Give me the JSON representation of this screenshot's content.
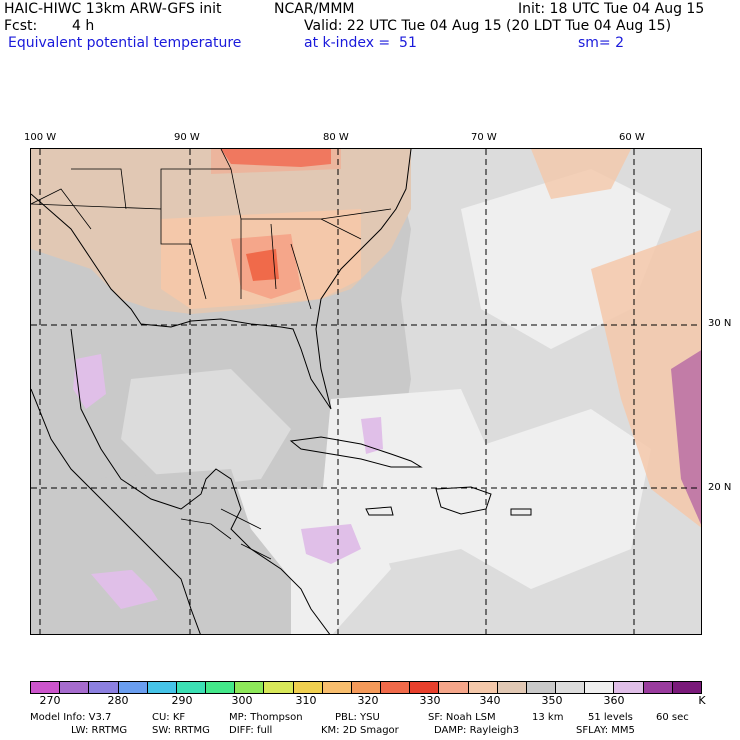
{
  "header": {
    "model": "HAIC-HIWC 13km ARW-GFS init",
    "org": "NCAR/MMM",
    "init": "Init: 18 UTC Tue 04 Aug 15",
    "fcst_label": "Fcst:",
    "fcst_value": "4 h",
    "valid": "Valid: 22 UTC Tue 04 Aug 15 (20 LDT Tue 04 Aug 15)",
    "field": "Equivalent potential temperature",
    "level": "at k-index =  51",
    "smooth": "sm= 2"
  },
  "map": {
    "lon_labels": [
      "100 W",
      "90 W",
      "80 W",
      "70 W",
      "60 W"
    ],
    "lat_labels": [
      "30 N",
      "20 N"
    ],
    "colors": {
      "ocean_base": "#c9c9c9",
      "tan": "#e1c8b4",
      "peach": "#f4c8aa",
      "salmon": "#f5a68a",
      "orange_red": "#f06a4a",
      "red": "#e8402c",
      "light_gray": "#dcdcdc",
      "pale": "#efefef",
      "lavender": "#e0bfe8",
      "purple": "#9a3c9e"
    }
  },
  "colorbar": {
    "colors": [
      "#cc55cc",
      "#a66cce",
      "#8c80e0",
      "#6a9ef0",
      "#46c4e8",
      "#3ce0b4",
      "#44e88a",
      "#8ee85a",
      "#d8e85a",
      "#f0d050",
      "#f8be6e",
      "#f49a5a",
      "#f06a4a",
      "#e8402c",
      "#f5a68a",
      "#f4c8aa",
      "#e1c8b4",
      "#c9c9c9",
      "#dcdcdc",
      "#efefef",
      "#e0bfe8",
      "#9a3c9e",
      "#7a1a7a"
    ],
    "ticks": [
      "270",
      "280",
      "290",
      "300",
      "310",
      "320",
      "330",
      "340",
      "350",
      "360",
      "K"
    ]
  },
  "footer": {
    "line1": [
      "Model Info: V3.7",
      "CU: KF",
      "MP: Thompson",
      "PBL: YSU",
      "SF: Noah LSM",
      "13 km",
      "51 levels",
      "60 sec"
    ],
    "line2": [
      "LW: RRTMG",
      "SW: RRTMG",
      "DIFF: full",
      "KM: 2D Smagor",
      "DAMP: Rayleigh3",
      "SFLAY: MM5"
    ]
  }
}
